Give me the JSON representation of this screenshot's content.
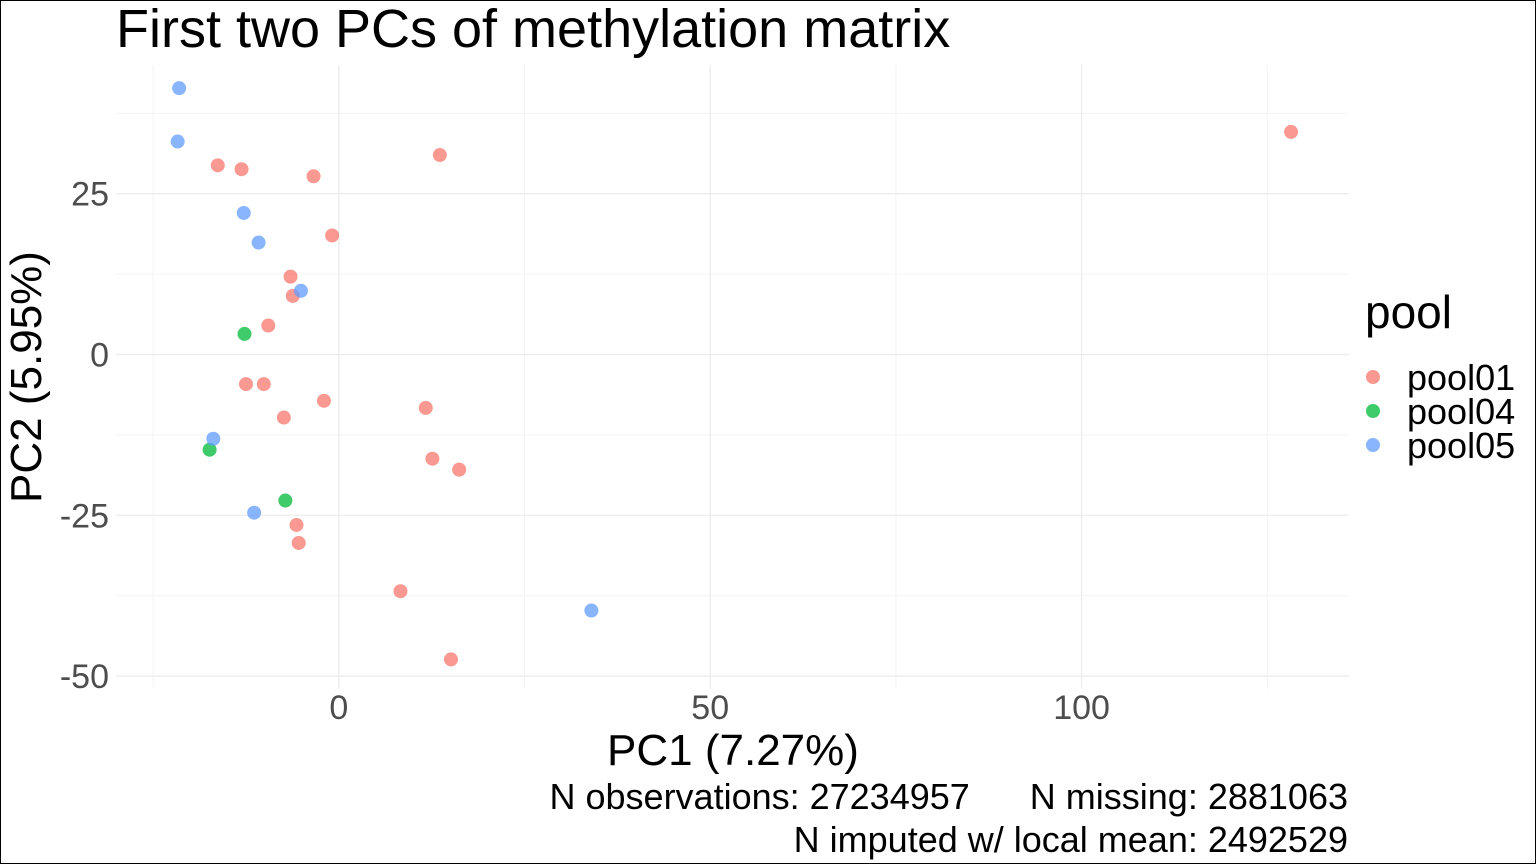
{
  "chart_data": {
    "type": "scatter",
    "title": "First two PCs of methylation matrix",
    "xlabel": "PC1 (7.27%)",
    "ylabel": "PC2 (5.95%)",
    "xlim": [
      -30,
      136
    ],
    "ylim": [
      -52,
      45
    ],
    "x_ticks": [
      0,
      50,
      100
    ],
    "x_tick_labels": [
      "0",
      "50",
      "100"
    ],
    "x_minor_ticks": [
      -25,
      25,
      75,
      125
    ],
    "y_ticks": [
      25,
      0,
      -25,
      -50
    ],
    "y_tick_labels": [
      "25",
      "0",
      "-25",
      "-50"
    ],
    "y_minor_ticks": [
      37.5,
      12.5,
      -12.5,
      -37.5
    ],
    "grid": true,
    "legend": {
      "title": "pool",
      "placement": "right",
      "entries": [
        {
          "name": "pool01",
          "color": "#F8766D"
        },
        {
          "name": "pool04",
          "color": "#00BA38"
        },
        {
          "name": "pool05",
          "color": "#619CFF"
        }
      ]
    },
    "series": [
      {
        "name": "pool01",
        "color": "#F8766D",
        "points": [
          [
            -16.3,
            29.4
          ],
          [
            -13.1,
            28.8
          ],
          [
            -3.4,
            27.7
          ],
          [
            13.6,
            31.0
          ],
          [
            128.2,
            34.6
          ],
          [
            -0.9,
            18.5
          ],
          [
            -6.5,
            12.1
          ],
          [
            -6.2,
            9.1
          ],
          [
            -9.5,
            4.5
          ],
          [
            -12.5,
            -4.6
          ],
          [
            -10.1,
            -4.6
          ],
          [
            -2.0,
            -7.2
          ],
          [
            -7.4,
            -9.8
          ],
          [
            11.7,
            -8.3
          ],
          [
            12.6,
            -16.2
          ],
          [
            16.2,
            -17.9
          ],
          [
            -5.7,
            -26.5
          ],
          [
            -5.4,
            -29.3
          ],
          [
            8.3,
            -36.8
          ],
          [
            15.1,
            -47.4
          ]
        ]
      },
      {
        "name": "pool04",
        "color": "#00BA38",
        "points": [
          [
            -12.7,
            3.2
          ],
          [
            -17.4,
            -14.8
          ],
          [
            -7.2,
            -22.7
          ]
        ]
      },
      {
        "name": "pool05",
        "color": "#619CFF",
        "points": [
          [
            -21.5,
            41.4
          ],
          [
            -21.7,
            33.1
          ],
          [
            -12.8,
            22.0
          ],
          [
            -10.8,
            17.4
          ],
          [
            -5.1,
            9.9
          ],
          [
            -16.9,
            -13.1
          ],
          [
            -11.4,
            -24.6
          ],
          [
            34.0,
            -39.8
          ]
        ]
      }
    ],
    "caption_lines": [
      "N observations: 27234957      N missing: 2881063",
      "N imputed w/ local mean: 2492529"
    ]
  }
}
